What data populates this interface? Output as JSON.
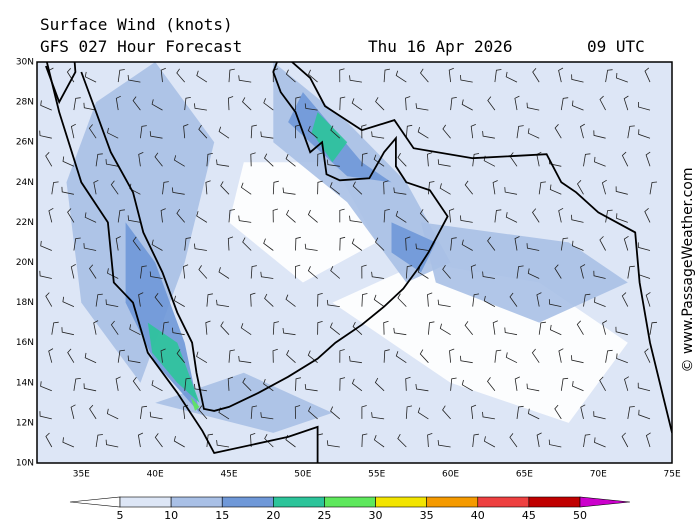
{
  "header": {
    "title": "Surface Wind (knots)",
    "subtitle": "GFS 027 Hour Forecast",
    "date": "Thu 16 Apr 2026",
    "time": "09 UTC"
  },
  "map": {
    "lat_labels": [
      "10N",
      "12N",
      "14N",
      "16N",
      "18N",
      "20N",
      "22N",
      "24N",
      "26N",
      "28N",
      "30N"
    ],
    "lon_labels": [
      "35E",
      "40E",
      "45E",
      "50E",
      "55E",
      "60E",
      "65E",
      "70E",
      "75E"
    ]
  },
  "colorbar": {
    "labels": [
      5,
      10,
      15,
      20,
      25,
      30,
      35,
      40,
      45,
      50
    ],
    "colors": [
      "#ffffff",
      "#dde6f6",
      "#a9c0e6",
      "#6f98d8",
      "#2cc49a",
      "#5ee85c",
      "#f2e400",
      "#f59a00",
      "#ee4040",
      "#c00000",
      "#cc00cc"
    ]
  },
  "credit": "© www.PassageWeather.com"
}
